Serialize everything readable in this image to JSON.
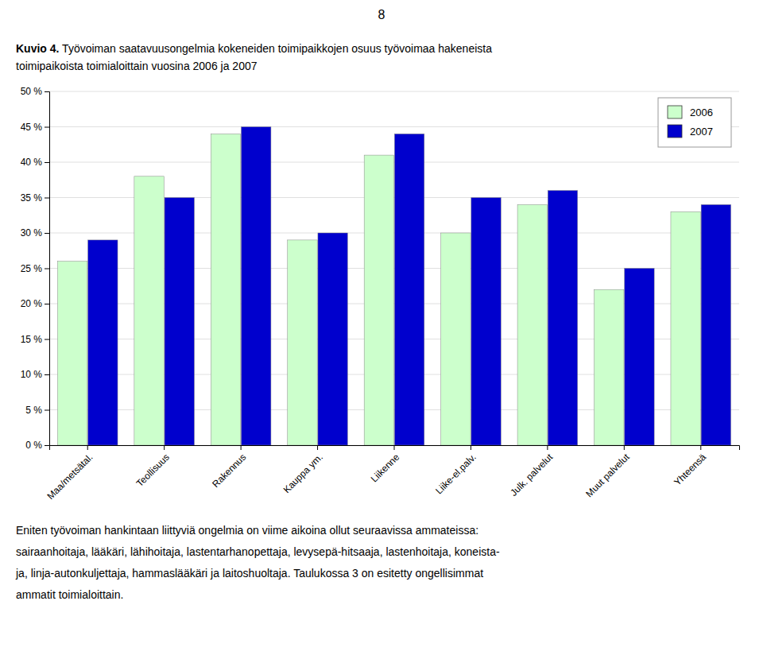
{
  "chart_data": {
    "type": "bar",
    "title": "Kuvio 4. Työvoiman saatavuusongelmia kokeneiden toimipaikkojen osuus työvoimaa hakeneista",
    "subtitle": "toimipaikoista toimialoittain vuosina 2006 ja 2007",
    "categories": [
      "Maa/metsätal.",
      "Teollisuus",
      "Rakennus",
      "Kauppa ym.",
      "Liikenne",
      "Liike-el.palv.",
      "Julk. palvelut",
      "Muut palvelut",
      "Yhteensä"
    ],
    "series": [
      {
        "name": "2006",
        "color": "#ccffcc",
        "values": [
          26,
          38,
          44,
          29,
          41,
          30,
          34,
          22,
          33
        ]
      },
      {
        "name": "2007",
        "color": "#0000cd",
        "values": [
          29,
          35,
          45,
          30,
          44,
          35,
          36,
          25,
          34
        ]
      }
    ],
    "ylim": [
      0,
      50
    ],
    "yticks": [
      {
        "value": 0,
        "label": "0 %"
      },
      {
        "value": 5,
        "label": "5 %"
      },
      {
        "value": 10,
        "label": "10 %"
      },
      {
        "value": 15,
        "label": "15 %"
      },
      {
        "value": 20,
        "label": "20 %"
      },
      {
        "value": 25,
        "label": "25 %"
      },
      {
        "value": 30,
        "label": "30 %"
      },
      {
        "value": 35,
        "label": "35 %"
      },
      {
        "value": 40,
        "label": "40 %"
      },
      {
        "value": 45,
        "label": "45 %"
      },
      {
        "value": 50,
        "label": "50 %"
      }
    ],
    "grid": true,
    "legend": "top-right",
    "annotations": [
      "8",
      "Eniten työvoiman hankintaan liittyviä ongelmia on viime aikoina ollut seuraavissa ammateissa:",
      "sairaanhoitaja, lääkäri, lähihoitaja, lastentarhanopettaja, levysepä-hitsaaja, lastenhoitaja, koneista-",
      "ja, linja-autonkuljettaja, hammaslääkäri ja laitoshuoltaja. Taulukossa 3 on esitetty ongellisimmat",
      "ammatit toimialoittain."
    ]
  }
}
